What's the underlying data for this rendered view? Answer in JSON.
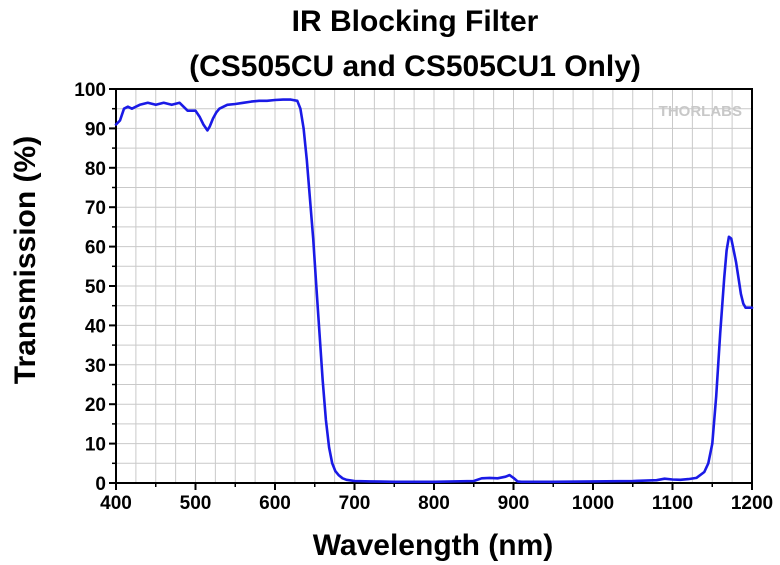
{
  "chart_data": {
    "type": "line",
    "title_line1": "IR Blocking Filter",
    "title_line2": "(CS505CU and CS505CU1 Only)",
    "xlabel": "Wavelength (nm)",
    "ylabel": "Transmission (%)",
    "xlim": [
      400,
      1200
    ],
    "ylim": [
      0,
      100
    ],
    "x_ticks": [
      400,
      500,
      600,
      700,
      800,
      900,
      1000,
      1100,
      1200
    ],
    "y_ticks": [
      0,
      10,
      20,
      30,
      40,
      50,
      60,
      70,
      80,
      90,
      100
    ],
    "grid": true,
    "watermark": "THORLABS",
    "line_color": "#1a1ae6",
    "series": [
      {
        "x": [
          400,
          405,
          410,
          415,
          420,
          425,
          430,
          440,
          450,
          460,
          470,
          480,
          490,
          500,
          505,
          510,
          515,
          518,
          522,
          526,
          530,
          540,
          550,
          560,
          570,
          580,
          590,
          600,
          610,
          620,
          628,
          632,
          636,
          640,
          644,
          648,
          652,
          656,
          660,
          664,
          668,
          672,
          676,
          680,
          685,
          690,
          700,
          720,
          750,
          800,
          850,
          860,
          870,
          880,
          890,
          895,
          900,
          905,
          910,
          950,
          1000,
          1050,
          1080,
          1090,
          1100,
          1110,
          1120,
          1130,
          1140,
          1145,
          1150,
          1155,
          1160,
          1165,
          1168,
          1171,
          1174,
          1177,
          1180,
          1183,
          1186,
          1189,
          1192,
          1195,
          1198,
          1200
        ],
        "y": [
          91,
          92,
          95,
          95.5,
          95,
          95.5,
          96,
          96.5,
          96,
          96.5,
          96,
          96.5,
          94.5,
          94.5,
          93,
          91,
          89.5,
          90.5,
          92.5,
          94,
          95,
          96,
          96.2,
          96.5,
          96.8,
          97,
          97,
          97.2,
          97.3,
          97.3,
          97,
          95,
          90,
          82,
          72,
          62,
          50,
          38,
          26,
          16,
          9,
          5,
          3,
          2,
          1.2,
          0.8,
          0.5,
          0.4,
          0.3,
          0.3,
          0.5,
          1.2,
          1.3,
          1.2,
          1.6,
          2.0,
          1.3,
          0.4,
          0.3,
          0.3,
          0.4,
          0.5,
          0.7,
          1.1,
          0.9,
          0.8,
          1.0,
          1.3,
          2.8,
          5,
          10,
          22,
          38,
          52,
          59,
          62.5,
          62,
          59,
          56,
          52,
          48,
          45.5,
          44.5,
          44.5,
          44.5,
          44.5
        ]
      }
    ]
  }
}
